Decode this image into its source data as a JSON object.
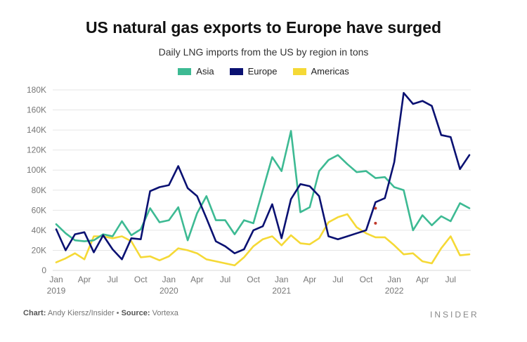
{
  "chart_data": {
    "type": "line",
    "title": "US natural gas exports to Europe have surged",
    "subtitle": "Daily LNG imports from the US by region in tons",
    "ylim": [
      0,
      180000
    ],
    "yticks": [
      0,
      20000,
      40000,
      60000,
      80000,
      100000,
      120000,
      140000,
      160000,
      180000
    ],
    "ytick_labels": [
      "0",
      "20K",
      "40K",
      "60K",
      "80K",
      "100K",
      "120K",
      "140K",
      "160K",
      "180K"
    ],
    "x_start": "2019-01",
    "x_end": "2022-08",
    "xticks": [
      {
        "month_index": 0,
        "label": "Jan",
        "year": "2019"
      },
      {
        "month_index": 3,
        "label": "Apr",
        "year": ""
      },
      {
        "month_index": 6,
        "label": "Jul",
        "year": ""
      },
      {
        "month_index": 9,
        "label": "Oct",
        "year": ""
      },
      {
        "month_index": 12,
        "label": "Jan",
        "year": "2020"
      },
      {
        "month_index": 15,
        "label": "Apr",
        "year": ""
      },
      {
        "month_index": 18,
        "label": "Jul",
        "year": ""
      },
      {
        "month_index": 21,
        "label": "Oct",
        "year": ""
      },
      {
        "month_index": 24,
        "label": "Jan",
        "year": "2021"
      },
      {
        "month_index": 27,
        "label": "Apr",
        "year": ""
      },
      {
        "month_index": 30,
        "label": "Jul",
        "year": ""
      },
      {
        "month_index": 33,
        "label": "Oct",
        "year": ""
      },
      {
        "month_index": 36,
        "label": "Jan",
        "year": "2022"
      },
      {
        "month_index": 39,
        "label": "Apr",
        "year": ""
      },
      {
        "month_index": 42,
        "label": "Jul",
        "year": ""
      }
    ],
    "series": [
      {
        "name": "Asia",
        "color": "#3dba93",
        "values": [
          46000,
          37000,
          30000,
          29000,
          30000,
          36000,
          34000,
          49000,
          35000,
          41000,
          62000,
          48000,
          50000,
          63000,
          30000,
          57000,
          74000,
          50000,
          50000,
          36000,
          50000,
          47000,
          80000,
          113000,
          99000,
          139000,
          58000,
          63000,
          99000,
          110000,
          115000,
          106000,
          98000,
          99000,
          92000,
          93000,
          83000,
          80000,
          40000,
          55000,
          45000,
          54000,
          49000,
          67000,
          62000
        ]
      },
      {
        "name": "Europe",
        "color": "#0a1172",
        "values": [
          41000,
          20000,
          36000,
          38000,
          18000,
          35000,
          21000,
          11000,
          32000,
          31000,
          79000,
          83000,
          85000,
          104000,
          82000,
          74000,
          52000,
          29000,
          24000,
          17000,
          21000,
          40000,
          44000,
          66000,
          32000,
          71000,
          86000,
          84000,
          74000,
          34000,
          31000,
          34000,
          37000,
          40000,
          68000,
          72000,
          108000,
          177000,
          166000,
          169000,
          164000,
          135000,
          133000,
          101000,
          115000
        ]
      },
      {
        "name": "Americas",
        "color": "#f5d936",
        "values": [
          8000,
          12000,
          17000,
          11000,
          34000,
          34000,
          32000,
          34000,
          29000,
          13000,
          14000,
          10000,
          14000,
          22000,
          20000,
          17000,
          11000,
          9000,
          7000,
          5000,
          13000,
          24000,
          31000,
          34000,
          25000,
          35000,
          27000,
          26000,
          32000,
          48000,
          53000,
          56000,
          43000,
          37000,
          33000,
          33000,
          25000,
          16000,
          17000,
          9000,
          7000,
          22000,
          34000,
          15000,
          16000
        ]
      }
    ],
    "annotation_points": [
      {
        "month_index": 34,
        "value": 62000,
        "color": "#c0392b"
      },
      {
        "month_index": 34,
        "value": 47000,
        "color": "#c0392b"
      }
    ]
  },
  "legend": [
    {
      "label": "Asia",
      "color": "#3dba93"
    },
    {
      "label": "Europe",
      "color": "#0a1172"
    },
    {
      "label": "Americas",
      "color": "#f5d936"
    }
  ],
  "footer": {
    "chart_label": "Chart:",
    "chart_value": "Andy Kiersz/Insider",
    "bullet": "•",
    "source_label": "Source:",
    "source_value": "Vortexa"
  },
  "brand": "INSIDER"
}
